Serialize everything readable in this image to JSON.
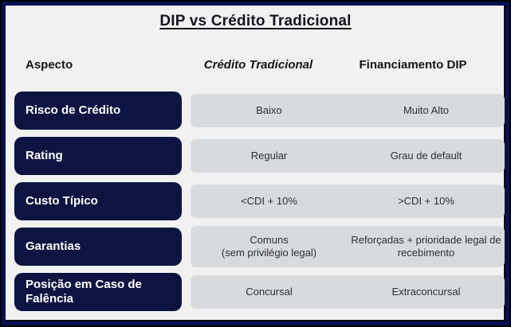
{
  "title": "DIP vs Crédito Tradicional",
  "colors": {
    "outer_edge": "#000004",
    "frame_navy": "#051150",
    "background": "#f1f1f2",
    "pill_navy": "#0e1441",
    "pill_text": "#ffffff",
    "row_band": "#d8dbde",
    "cell_text": "#2d2d2f",
    "header_text": "#141414",
    "title_text": "#14141c"
  },
  "chart_data": {
    "type": "table",
    "title": "DIP vs Crédito Tradicional",
    "columns": [
      "Aspecto",
      "Crédito Tradicional",
      "Financiamento DIP"
    ],
    "rows": [
      [
        "Risco de Crédito",
        "Baixo",
        "Muito Alto"
      ],
      [
        "Rating",
        "Regular",
        "Grau de default"
      ],
      [
        "Custo Típico",
        "<CDI + 10%",
        ">CDI + 10%"
      ],
      [
        "Garantias",
        "Comuns\n(sem privilégio legal)",
        "Reforçadas + prioridade legal de\nrecebimento"
      ],
      [
        "Posição em Caso de Falência",
        "Concursal",
        "Extraconcursal"
      ]
    ]
  }
}
